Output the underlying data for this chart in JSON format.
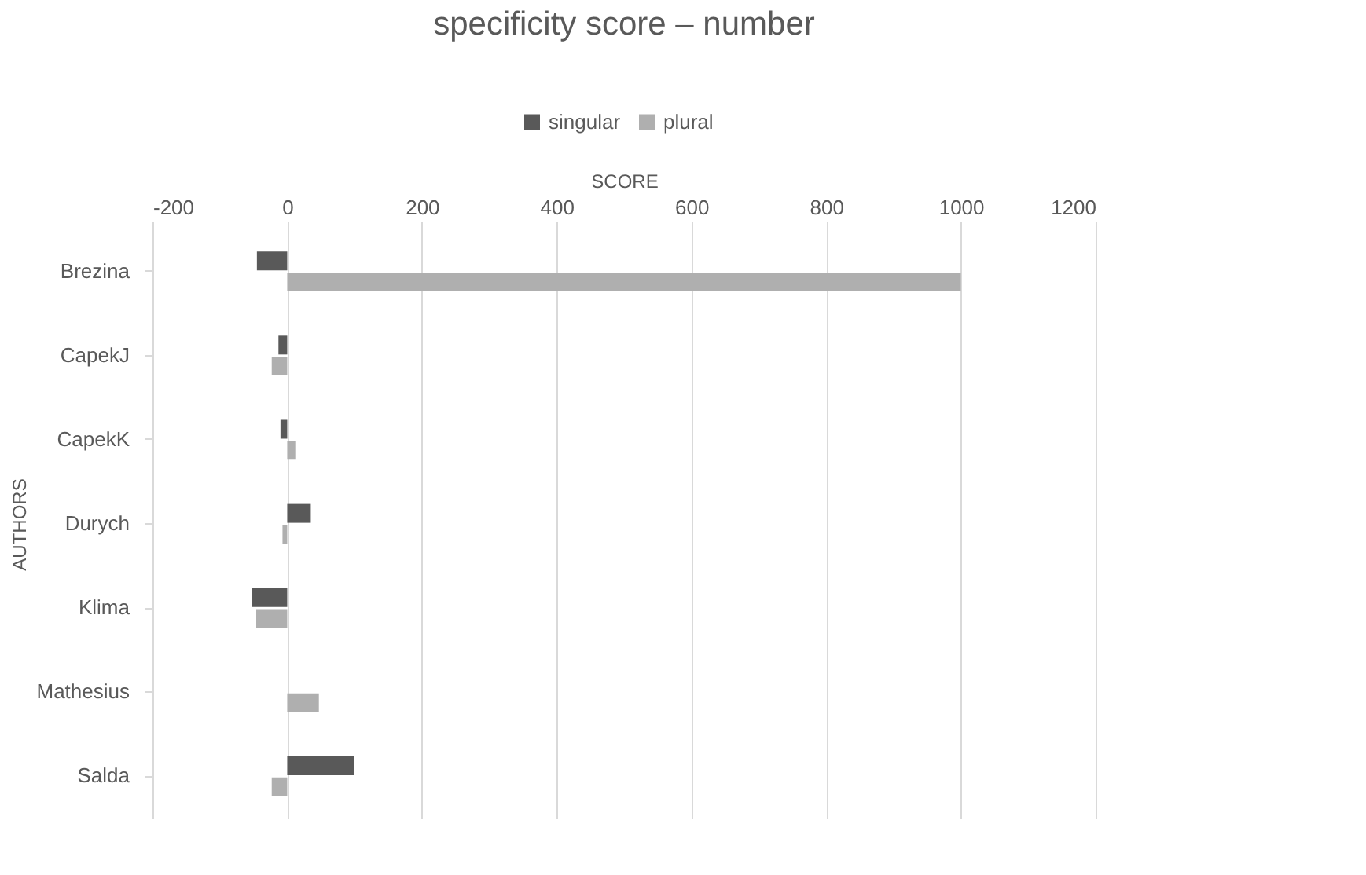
{
  "chart_data": {
    "type": "bar",
    "orientation": "horizontal",
    "title": "specificity score – number",
    "xlabel": "SCORE",
    "ylabel": "AUTHORS",
    "categories": [
      "Brezina",
      "CapekJ",
      "CapekK",
      "Durych",
      "Klima",
      "Mathesius",
      "Salda"
    ],
    "series": [
      {
        "name": "singular",
        "color": "#595959",
        "values": [
          -45,
          -13,
          -10,
          35,
          -53,
          0,
          99
        ]
      },
      {
        "name": "plural",
        "color": "#afafaf",
        "values": [
          1000,
          -23,
          12,
          -7,
          -46,
          47,
          -23
        ]
      }
    ],
    "xlim": [
      -200,
      1200
    ],
    "xticks": [
      -200,
      0,
      200,
      400,
      600,
      800,
      1000,
      1200
    ],
    "grid": "x",
    "legend": "top"
  }
}
